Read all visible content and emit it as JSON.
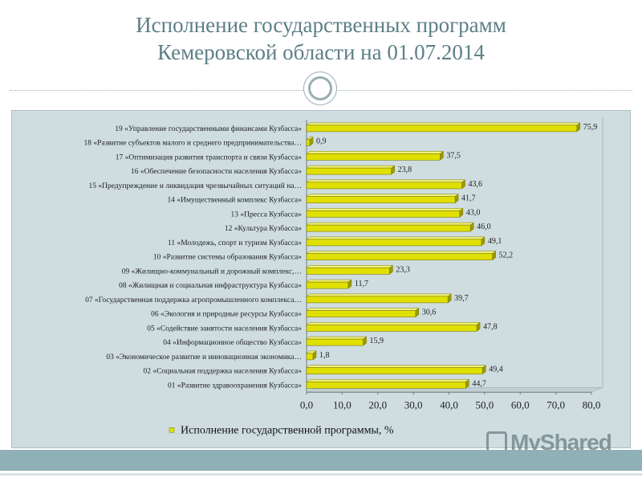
{
  "title": {
    "line1": "Исполнение государственных программ",
    "line2": "Кемеровской области на 01.07.2014"
  },
  "watermark": {
    "text": "MyShared"
  },
  "colors": {
    "bar": "#e0e000",
    "bar_edge": "#7a7a00",
    "panel": "#cfdde0",
    "title": "#5d7f86"
  },
  "chart_data": {
    "type": "bar",
    "orientation": "horizontal",
    "categories": [
      "19 «Управление государственными финансами Кузбасса»",
      "18 «Развитие субъектов малого и среднего предпринимательства…",
      "17 «Оптимизация развития транспорта и связи Кузбасса»",
      "16 «Обеспечение безопасности населения Кузбасса»",
      "15 «Предупреждение и ликвидация чрезвычайных ситуаций на…",
      "14 «Имущественный комплекс Кузбасса»",
      "13 «Пресса Кузбасса»",
      "12 «Культура Кузбасса»",
      "11 «Молодежь, спорт и туризм Кузбасса»",
      "10 «Развитие системы образования Кузбасса»",
      "09 «Жилищно-коммунальный и дорожный комплекс,…",
      "08 «Жилищная и социальная инфраструктура Кузбасса»",
      "07 «Государственная поддержка агропромышленного комплекса…",
      "06 «Экология и природные ресурсы Кузбасса»",
      "05 «Содействие занятости населения Кузбасса»",
      "04 «Информационное общество Кузбасса»",
      "03 «Экономическое развитие и инновационная экономика…",
      "02 «Социальная поддержка населения Кузбасса»",
      "01 «Развитие здравоохранения Кузбасса»"
    ],
    "values": [
      75.9,
      0.9,
      37.5,
      23.8,
      43.6,
      41.7,
      43.0,
      46.0,
      49.1,
      52.2,
      23.3,
      11.7,
      39.7,
      30.6,
      47.8,
      15.9,
      1.8,
      49.4,
      44.7
    ],
    "value_labels": [
      "75,9",
      "0,9",
      "37,5",
      "23,8",
      "43,6",
      "41,7",
      "43,0",
      "46,0",
      "49,1",
      "52,2",
      "23,3",
      "11,7",
      "39,7",
      "30,6",
      "47,8",
      "15,9",
      "1,8",
      "49,4",
      "44,7"
    ],
    "xlim": [
      0,
      80
    ],
    "xticks": [
      0,
      10,
      20,
      30,
      40,
      50,
      60,
      70,
      80
    ],
    "xtick_labels": [
      "0,0",
      "10,0",
      "20,0",
      "30,0",
      "40,0",
      "50,0",
      "60,0",
      "70,0",
      "80,0"
    ],
    "series": [
      {
        "name": "Исполнение государственной программы, %"
      }
    ],
    "legend_position": "bottom",
    "grid": false
  }
}
